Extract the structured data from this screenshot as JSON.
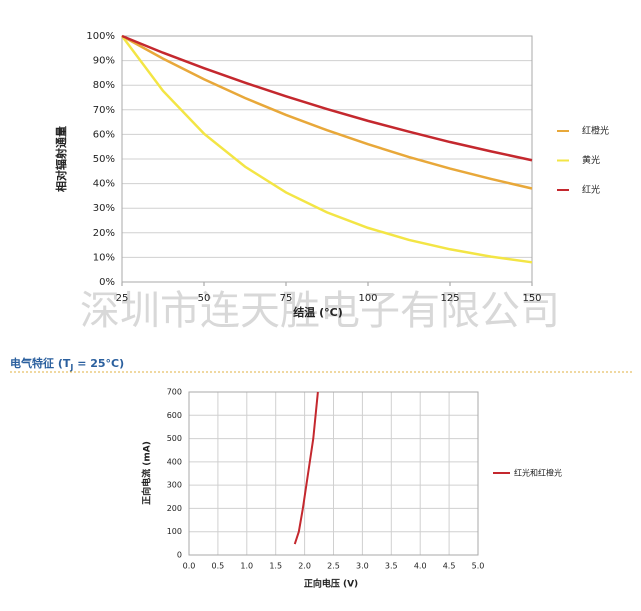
{
  "watermark": "深圳市连天胜电子有限公司",
  "section_title": [
    "电气特征 (T",
    "J",
    " = 25°C)"
  ],
  "chart_data": [
    {
      "type": "line",
      "xlabel": "结温 (°C)",
      "ylabel": "相对辐射通量",
      "x": [
        25,
        37.5,
        50,
        62.5,
        75,
        87.5,
        100,
        112.5,
        125,
        137.5,
        150
      ],
      "series": [
        {
          "name": "红橙光",
          "color": "#e8a83a",
          "values": [
            100,
            90.8,
            82.4,
            74.8,
            67.9,
            61.7,
            56.0,
            50.8,
            46.1,
            41.9,
            38.0
          ]
        },
        {
          "name": "黄光",
          "color": "#f3e545",
          "values": [
            100,
            77.7,
            60.3,
            46.9,
            36.4,
            28.3,
            22.0,
            17.1,
            13.3,
            10.3,
            8.0
          ]
        },
        {
          "name": "红光",
          "color": "#c4282e",
          "values": [
            100,
            93.2,
            86.9,
            81.0,
            75.5,
            70.3,
            65.5,
            61.1,
            56.9,
            53.1,
            49.5
          ]
        }
      ],
      "xlim": [
        25,
        150
      ],
      "xticks": [
        25,
        50,
        75,
        100,
        125,
        150
      ],
      "ylim": [
        0,
        100
      ],
      "yticks": [
        {
          "value": 0,
          "label": "0%"
        },
        {
          "value": 10,
          "label": "10%"
        },
        {
          "value": 20,
          "label": "20%"
        },
        {
          "value": 30,
          "label": "30%"
        },
        {
          "value": 40,
          "label": "40%"
        },
        {
          "value": 50,
          "label": "50%"
        },
        {
          "value": 60,
          "label": "60%"
        },
        {
          "value": 70,
          "label": "70%"
        },
        {
          "value": 80,
          "label": "80%"
        },
        {
          "value": 90,
          "label": "90%"
        },
        {
          "value": 100,
          "label": "100%"
        }
      ],
      "grid": "y",
      "legend": "right"
    },
    {
      "type": "line",
      "xlabel": "正向电压 (V)",
      "ylabel": "正向电流 (mA)",
      "x": [
        1.83,
        1.9,
        1.97,
        2.03,
        2.09,
        2.15,
        2.19,
        2.23
      ],
      "series": [
        {
          "name": "红光和红橙光",
          "color": "#c4282e",
          "values": [
            47,
            100,
            200,
            300,
            400,
            500,
            600,
            700
          ]
        }
      ],
      "xlim": [
        0,
        5
      ],
      "xticks": [
        {
          "value": 0,
          "label": "0.0"
        },
        {
          "value": 0.5,
          "label": "0.5"
        },
        {
          "value": 1,
          "label": "1.0"
        },
        {
          "value": 1.5,
          "label": "1.5"
        },
        {
          "value": 2,
          "label": "2.0"
        },
        {
          "value": 2.5,
          "label": "2.5"
        },
        {
          "value": 3,
          "label": "3.0"
        },
        {
          "value": 3.5,
          "label": "3.5"
        },
        {
          "value": 4,
          "label": "4.0"
        },
        {
          "value": 4.5,
          "label": "4.5"
        },
        {
          "value": 5,
          "label": "5.0"
        }
      ],
      "ylim": [
        0,
        700
      ],
      "yticks": [
        0,
        100,
        200,
        300,
        400,
        500,
        600,
        700
      ],
      "grid": "both",
      "legend": "right"
    }
  ]
}
